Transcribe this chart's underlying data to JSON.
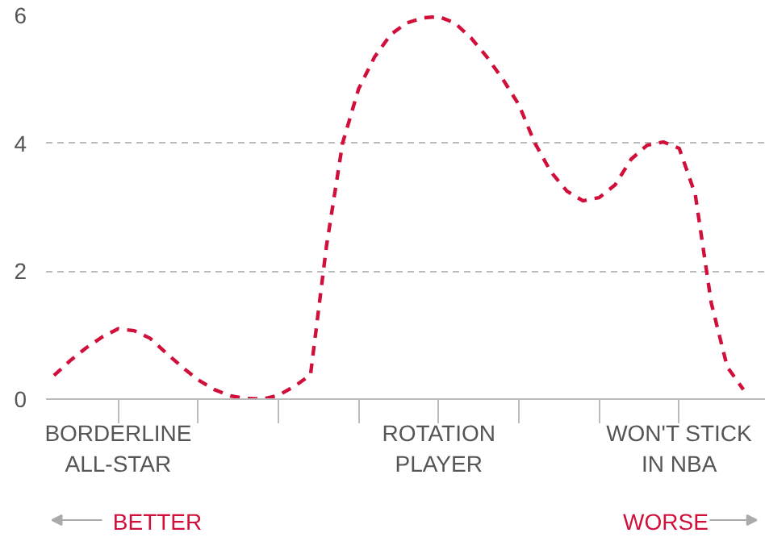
{
  "chart_data": {
    "type": "line",
    "annotations": [
      "BETTER",
      "WORSE"
    ],
    "categories": [
      null,
      null,
      null,
      null,
      "BORDERLINE ALL-STAR",
      null,
      null,
      null,
      null,
      null,
      null,
      null,
      null,
      null,
      null,
      null,
      null,
      null,
      null,
      null,
      null,
      null,
      null,
      null,
      "ROTATION PLAYER",
      null,
      null,
      null,
      null,
      null,
      null,
      null,
      null,
      null,
      null,
      null,
      null,
      null,
      null,
      "WON'T STICK IN NBA",
      null,
      null,
      null,
      null
    ],
    "ylim": [
      0,
      6
    ],
    "yticks": [
      0,
      2,
      4,
      6
    ],
    "grid": "y",
    "line_style": "dashed",
    "series": [
      {
        "color": "#d0103a",
        "values": [
          0.37,
          0.6,
          0.8,
          0.97,
          1.1,
          1.07,
          0.95,
          0.72,
          0.5,
          0.3,
          0.15,
          0.05,
          0.01,
          0.0,
          0.06,
          0.2,
          0.38,
          2.4,
          4.0,
          4.85,
          5.35,
          5.7,
          5.88,
          5.96,
          5.98,
          5.88,
          5.65,
          5.35,
          5.0,
          4.6,
          4.0,
          3.55,
          3.25,
          3.1,
          3.15,
          3.35,
          3.75,
          3.97,
          4.02,
          3.92,
          3.2,
          1.5,
          0.5,
          0.15
        ]
      }
    ]
  }
}
